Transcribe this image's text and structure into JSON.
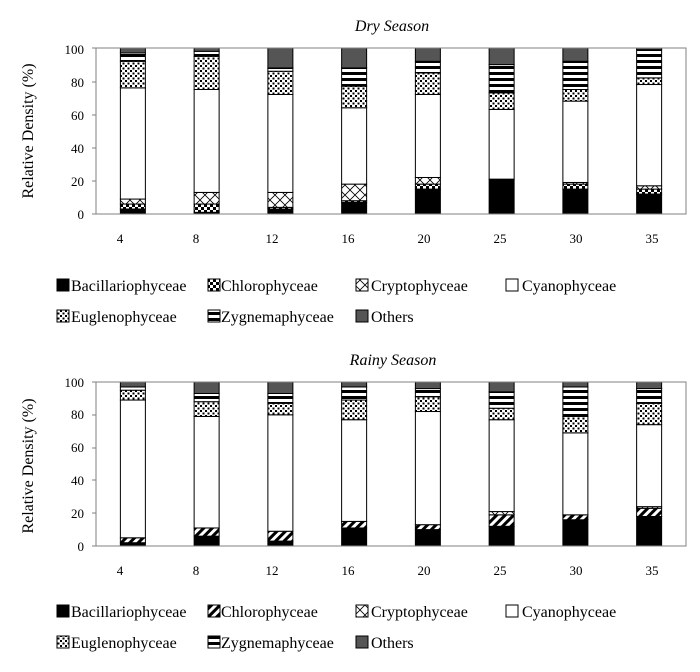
{
  "chart_data": [
    {
      "type": "bar",
      "stacked": true,
      "title": "Dry Season",
      "xlabel": "",
      "ylabel": "Relative Density (%)",
      "ylim": [
        0,
        100
      ],
      "yticks": [
        "0",
        "20",
        "40",
        "60",
        "80",
        "100"
      ],
      "categories": [
        "4",
        "8",
        "12",
        "16",
        "20",
        "25",
        "30",
        "35"
      ],
      "series": [
        {
          "name": "Bacillariophyceae",
          "values": [
            3,
            1,
            3,
            7,
            15,
            21,
            15,
            12
          ]
        },
        {
          "name": "Chlorophyceae",
          "values": [
            3,
            5,
            1,
            1,
            3,
            0,
            3,
            3
          ]
        },
        {
          "name": "Cryptophyceae",
          "values": [
            3,
            7,
            9,
            10,
            4,
            0,
            1,
            2
          ]
        },
        {
          "name": "Cyanophyceae",
          "values": [
            67,
            62,
            59,
            46,
            50,
            42,
            49,
            61
          ]
        },
        {
          "name": "Euglenophyceae",
          "values": [
            16,
            20,
            14,
            13,
            13,
            10,
            7,
            4
          ]
        },
        {
          "name": "Zygnemaphyceae",
          "values": [
            5,
            3,
            2,
            11,
            7,
            17,
            17,
            17
          ]
        },
        {
          "name": "Others",
          "values": [
            3,
            2,
            12,
            12,
            8,
            10,
            8,
            1
          ]
        }
      ],
      "legend": "bottom"
    },
    {
      "type": "bar",
      "stacked": true,
      "title": "Rainy  Season",
      "xlabel": "",
      "ylabel": "Relative Density (%)",
      "ylim": [
        0,
        100
      ],
      "yticks": [
        "0",
        "20",
        "40",
        "60",
        "80",
        "100"
      ],
      "categories": [
        "4",
        "8",
        "12",
        "16",
        "20",
        "25",
        "30",
        "35"
      ],
      "series": [
        {
          "name": "Bacillariophyceae",
          "values": [
            2,
            6,
            3,
            11,
            10,
            12,
            16,
            18
          ]
        },
        {
          "name": "Chlorophyceae",
          "values": [
            3,
            5,
            6,
            4,
            3,
            7,
            3,
            5
          ]
        },
        {
          "name": "Cryptophyceae",
          "values": [
            0,
            0,
            0,
            0,
            0,
            2,
            0,
            1
          ]
        },
        {
          "name": "Cyanophyceae",
          "values": [
            84,
            68,
            71,
            62,
            69,
            56,
            50,
            50
          ]
        },
        {
          "name": "Euglenophyceae",
          "values": [
            6,
            9,
            7,
            12,
            9,
            7,
            10,
            13
          ]
        },
        {
          "name": "Zygnemaphyceae",
          "values": [
            2,
            5,
            6,
            8,
            5,
            10,
            18,
            9
          ]
        },
        {
          "name": "Others",
          "values": [
            3,
            7,
            7,
            3,
            4,
            6,
            3,
            4
          ]
        }
      ],
      "legend": "bottom"
    }
  ],
  "legend_labels": [
    "Bacillariophyceae",
    "Chlorophyceae",
    "Cryptophyceae",
    "Cyanophyceae",
    "Euglenophyceae",
    "Zygnemaphyceae",
    "Others"
  ],
  "colors": {
    "bacillariophyceae": "#000000",
    "cyanophyceae": "#ffffff",
    "others": "#555555",
    "outline": "#000000",
    "axis": "#808080"
  }
}
